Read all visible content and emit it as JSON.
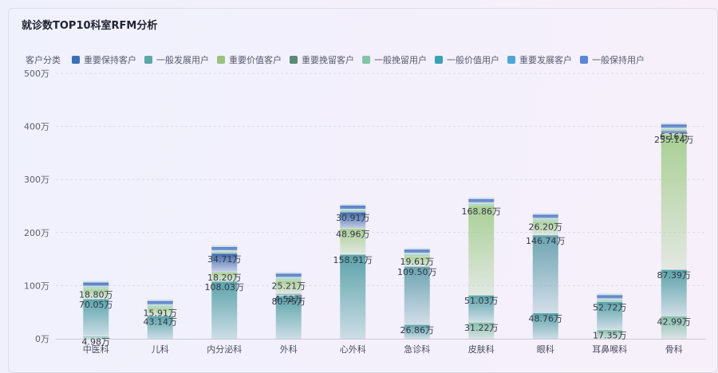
{
  "title": "就诊数TOP10科室RFM分析",
  "legend": {
    "label": "客户分类",
    "items": [
      {
        "name": "重要保持客户",
        "color": "#3d6fb6"
      },
      {
        "name": "一般发展用户",
        "color": "#5aa8a6"
      },
      {
        "name": "重要价值客户",
        "color": "#9bc17f"
      },
      {
        "name": "重要挽留客户",
        "color": "#5c8a75"
      },
      {
        "name": "一般挽留用户",
        "color": "#82c4a6"
      },
      {
        "name": "一般价值用户",
        "color": "#3aa3b3"
      },
      {
        "name": "重要发展客户",
        "color": "#4ba8d6"
      },
      {
        "name": "一般保持用户",
        "color": "#5b86d6"
      }
    ]
  },
  "chart_data": {
    "type": "bar",
    "stacked": true,
    "title": "就诊数TOP10科室RFM分析",
    "unit": "万",
    "ylim": [
      0,
      500
    ],
    "y_ticks": [
      "0万",
      "100万",
      "200万",
      "300万",
      "400万",
      "500万"
    ],
    "grid": true,
    "legend_position": "top-left",
    "categories": [
      "中医科",
      "儿科",
      "内分泌科",
      "外科",
      "心外科",
      "急诊科",
      "皮肤科",
      "眼科",
      "耳鼻喉科",
      "骨科"
    ],
    "series": [
      {
        "name": "一般发展用户",
        "values": [
          4.98,
          0,
          0,
          0,
          0,
          0,
          31.22,
          0,
          17.35,
          42.99
        ]
      },
      {
        "name": "重要价值客户",
        "values": [
          0,
          0,
          0,
          0,
          0,
          0,
          0,
          0,
          0,
          0
        ]
      },
      {
        "name": "一般挽留用户",
        "values": [
          70.05,
          43.14,
          108.03,
          80.75,
          158.91,
          26.86,
          51.03,
          48.76,
          52.72,
          87.39
        ]
      },
      {
        "name": "重要挽留客户",
        "values": [
          0,
          0,
          0,
          4.52,
          0,
          109.5,
          0,
          146.74,
          0,
          0
        ]
      },
      {
        "name": "一般价值用户",
        "values": [
          18.8,
          15.91,
          18.2,
          25.21,
          48.96,
          19.61,
          168.86,
          26.2,
          0,
          255.14
        ]
      },
      {
        "name": "重要发展客户",
        "values": [
          0,
          0,
          34.71,
          0,
          30.91,
          0,
          0,
          0,
          0,
          6.16
        ]
      },
      {
        "name": "重要保持客户",
        "values": [
          0,
          0,
          0,
          0,
          0,
          0,
          0,
          0,
          0,
          0
        ]
      },
      {
        "name": "一般保持用户",
        "values": [
          0,
          0,
          0,
          0,
          0,
          0,
          0,
          0,
          0,
          0
        ]
      }
    ],
    "data_labels": [
      {
        "category": "中医科",
        "labels": [
          "4.98万",
          "70.05万",
          "18.80万"
        ]
      },
      {
        "category": "儿科",
        "labels": [
          "43.14万",
          "15.91万"
        ]
      },
      {
        "category": "内分泌科",
        "labels": [
          "108.03万",
          "18.20万",
          "34.71万"
        ]
      },
      {
        "category": "外科",
        "labels": [
          "80.75万",
          "4.52万",
          "25.21万"
        ]
      },
      {
        "category": "心外科",
        "labels": [
          "158.91万",
          "48.96万",
          "30.91万"
        ]
      },
      {
        "category": "急诊科",
        "labels": [
          "26.86万",
          "109.50万",
          "19.61万"
        ]
      },
      {
        "category": "皮肤科",
        "labels": [
          "31.22万",
          "51.03万",
          "168.86万"
        ]
      },
      {
        "category": "眼科",
        "labels": [
          "48.76万",
          "146.74万",
          "26.20万"
        ]
      },
      {
        "category": "耳鼻喉科",
        "labels": [
          "17.35万",
          "52.72万"
        ]
      },
      {
        "category": "骨科",
        "labels": [
          "42.99万",
          "87.39万",
          "255.14万",
          "6.16万"
        ]
      }
    ]
  }
}
